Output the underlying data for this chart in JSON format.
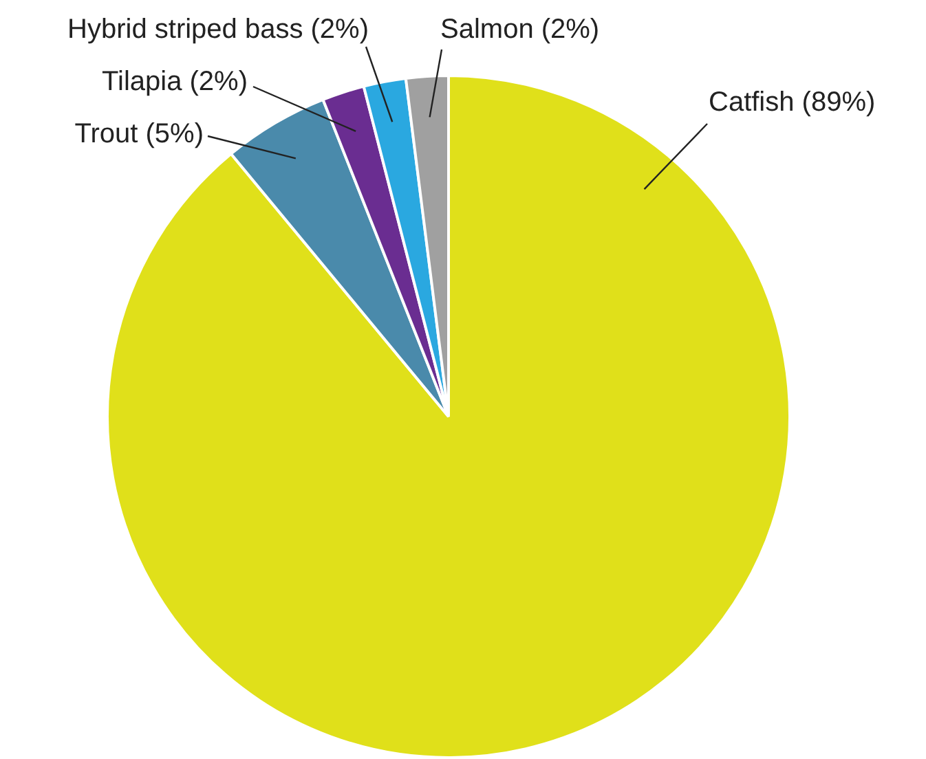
{
  "chart_data": {
    "type": "pie",
    "categories": [
      "Catfish",
      "Trout",
      "Tilapia",
      "Hybrid striped bass",
      "Salmon"
    ],
    "values": [
      89,
      5,
      2,
      2,
      2
    ],
    "value_labels": [
      "(89%)",
      "(5%)",
      "(2%)",
      "(2%)",
      "(2%)"
    ],
    "colors": [
      "#e0e01a",
      "#4a8aab",
      "#6a2d91",
      "#2aa8e0",
      "#a0a0a0"
    ],
    "legend": false
  }
}
